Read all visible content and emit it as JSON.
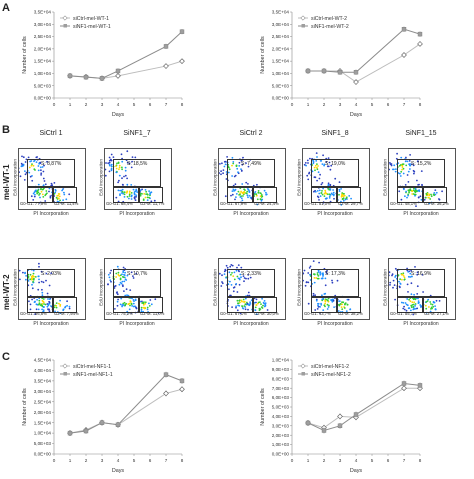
{
  "panels": {
    "a": "A",
    "b": "B",
    "c": "C"
  },
  "chart_data": [
    {
      "type": "line",
      "id": "A-left",
      "xlabel": "Days",
      "ylabel": "Number of cells",
      "x": [
        1,
        2,
        3,
        4,
        7,
        8
      ],
      "xticks": [
        "0",
        "1",
        "2",
        "3",
        "4",
        "5",
        "6",
        "7",
        "8"
      ],
      "yticks": [
        "0,0E+00",
        "5,0E+03",
        "1,0E+04",
        "1,5E+04",
        "2,0E+04",
        "2,5E+04",
        "3,0E+04",
        "3,5E+04"
      ],
      "ylim": [
        0,
        35000
      ],
      "xlim": [
        0,
        8
      ],
      "legend_position": "top-left",
      "series": [
        {
          "name": "siCtrl-mel-WT-1",
          "marker": "diamond",
          "color": "#9a9a9a",
          "values": [
            9000,
            8600,
            8000,
            9000,
            13000,
            15000
          ]
        },
        {
          "name": "siNF1-mel-WT-1",
          "marker": "square",
          "color": "#9a9a9a",
          "values": [
            9000,
            8500,
            8000,
            11000,
            21000,
            27000
          ]
        }
      ]
    },
    {
      "type": "line",
      "id": "A-right",
      "xlabel": "Days",
      "ylabel": "Number of cells",
      "x": [
        1,
        2,
        3,
        4,
        7,
        8
      ],
      "xticks": [
        "0",
        "1",
        "2",
        "3",
        "4",
        "5",
        "6",
        "7",
        "8"
      ],
      "yticks": [
        "0,0E+00",
        "5,0E+03",
        "1,0E+04",
        "1,5E+04",
        "2,0E+04",
        "2,5E+04",
        "3,0E+04",
        "3,5E+04"
      ],
      "ylim": [
        0,
        35000
      ],
      "xlim": [
        0,
        8
      ],
      "legend_position": "top-left",
      "series": [
        {
          "name": "siCtrl-mel-WT-2",
          "marker": "diamond",
          "color": "#9a9a9a",
          "values": [
            11000,
            11000,
            11000,
            6500,
            17500,
            22000
          ]
        },
        {
          "name": "siNF1-mel-WT-2",
          "marker": "square",
          "color": "#9a9a9a",
          "values": [
            11000,
            11000,
            10500,
            10500,
            28000,
            26000
          ]
        }
      ]
    },
    {
      "type": "line",
      "id": "C-left",
      "xlabel": "Days",
      "ylabel": "Number of cells",
      "x": [
        1,
        2,
        3,
        4,
        7,
        8
      ],
      "xticks": [
        "0",
        "1",
        "2",
        "3",
        "4",
        "5",
        "6",
        "7",
        "8"
      ],
      "yticks": [
        "0,0E+00",
        "5,0E+03",
        "1,0E+04",
        "1,5E+04",
        "2,0E+04",
        "2,5E+04",
        "3,0E+04",
        "3,5E+04",
        "4,0E+04",
        "4,5E+04"
      ],
      "ylim": [
        0,
        45000
      ],
      "xlim": [
        0,
        8
      ],
      "legend_position": "top-left",
      "series": [
        {
          "name": "siCtrl-mel-NF1-1",
          "marker": "diamond",
          "color": "#9a9a9a",
          "values": [
            10000,
            11500,
            15000,
            14000,
            29000,
            31000
          ]
        },
        {
          "name": "siNF1-mel-NF1-1",
          "marker": "square",
          "color": "#9a9a9a",
          "values": [
            10000,
            11000,
            15000,
            14000,
            38000,
            35000
          ]
        }
      ]
    },
    {
      "type": "line",
      "id": "C-right",
      "xlabel": "Days",
      "ylabel": "Number of cells",
      "x": [
        1,
        2,
        3,
        4,
        7,
        8
      ],
      "xticks": [
        "0",
        "1",
        "2",
        "3",
        "4",
        "5",
        "6",
        "7",
        "8"
      ],
      "yticks": [
        "0,0E+00",
        "1,0E+03",
        "2,0E+03",
        "3,0E+03",
        "4,0E+03",
        "5,0E+03",
        "6,0E+03",
        "7,0E+03",
        "8,0E+03",
        "9,0E+03",
        "1,0E+04"
      ],
      "ylim": [
        0,
        10000
      ],
      "xlim": [
        0,
        8
      ],
      "legend_position": "top-left",
      "series": [
        {
          "name": "siCtrl-mel-NF1-2",
          "marker": "diamond",
          "color": "#9a9a9a",
          "values": [
            3300,
            2800,
            4000,
            3900,
            7000,
            7000
          ]
        },
        {
          "name": "siNF1-mel-NF1-2",
          "marker": "square",
          "color": "#9a9a9a",
          "values": [
            3300,
            2500,
            3000,
            4200,
            7500,
            7300
          ]
        }
      ]
    }
  ],
  "flow": {
    "headers": [
      "SiCtrl 1",
      "SiNF1_7",
      "SiCtrl 2",
      "SiNF1_8",
      "SiNF1_15"
    ],
    "rows": [
      "mel-WT-1",
      "mel-WT-2"
    ],
    "ylabel": "EdU incorporation",
    "xlabel": "PI Incorporation",
    "plots": [
      [
        {
          "s": "S: 8,87%",
          "g0g1": "G0-G1: 77,9%",
          "g2m": "G2-M: 11,4%"
        },
        {
          "s": "S: 18,5%",
          "g0g1": "G0-G1: 68,4%",
          "g2m": "G2-M: 11,7%"
        },
        {
          "s": "S: 7,49%",
          "g0g1": "G0-G1: 67,9%",
          "g2m": "G2-M: 24,4%"
        },
        {
          "s": "S: 19,0%",
          "g0g1": "G0-G1: 51,0%",
          "g2m": "G2-M: 29,7%"
        },
        {
          "s": "S: 15,2%",
          "g0g1": "G0-G1: 48,1%",
          "g2m": "G2-M: 36,2%"
        }
      ],
      [
        {
          "s": "S: 2,93%",
          "g0g1": "G0-G1: 86,8%",
          "g2m": "G2-M: 7,94%"
        },
        {
          "s": "S: 10,7%",
          "g0g1": "G0-G1: 75,2%",
          "g2m": "G2-M: 11,0%"
        },
        {
          "s": "S: 2,33%",
          "g0g1": "G0-G1: 67,1%",
          "g2m": "G2-M: 30,0%"
        },
        {
          "s": "S: 17,3%",
          "g0g1": "G0-G1: 43,7%",
          "g2m": "G2-M: 38,2%"
        },
        {
          "s": "S: 16,9%",
          "g0g1": "G0-G1: 55,7%",
          "g2m": "G2-M: 27,1%"
        }
      ]
    ]
  }
}
